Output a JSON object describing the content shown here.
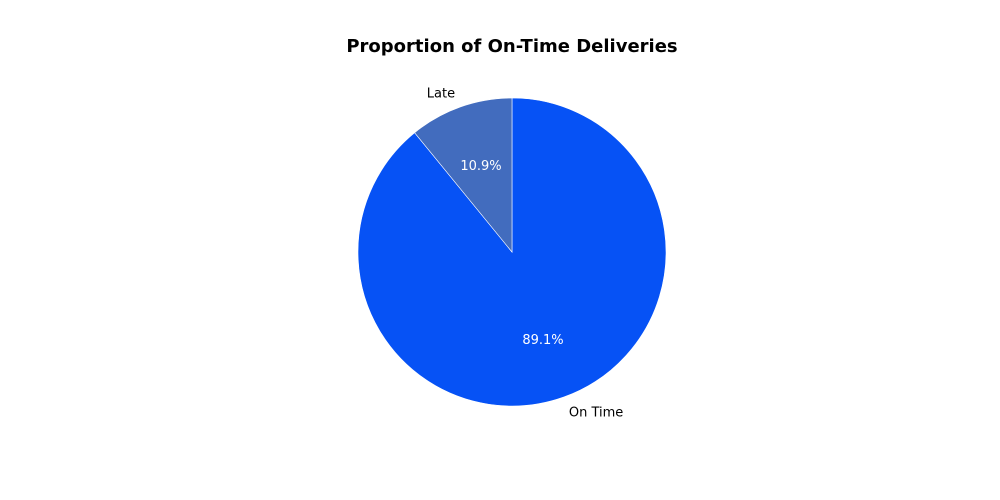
{
  "chart_data": {
    "type": "pie",
    "title": "Proportion of On-Time Deliveries",
    "start_angle_deg": 90,
    "direction": "clockwise",
    "slices": [
      {
        "label": "On Time",
        "value": 89.1,
        "pct_label": "89.1%",
        "color": "#0652f5"
      },
      {
        "label": "Late",
        "value": 10.9,
        "pct_label": "10.9%",
        "color": "#426cbe"
      }
    ]
  }
}
